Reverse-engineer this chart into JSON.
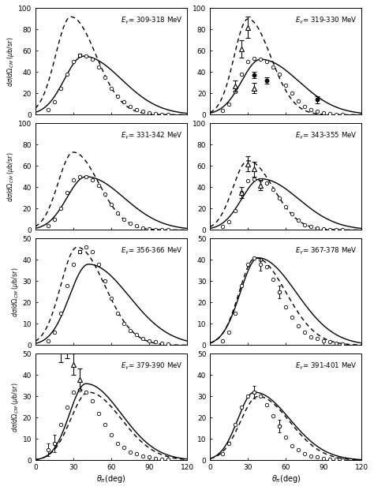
{
  "panels": [
    {
      "label": "309-318 MeV",
      "row": 0,
      "col": 0,
      "ymax": 100,
      "yticks": [
        0,
        20,
        40,
        60,
        80,
        100
      ],
      "solid_params": [
        55,
        38,
        15,
        30
      ],
      "dashed_params": [
        92,
        28,
        12,
        20
      ],
      "open_circles": [
        [
          10,
          5
        ],
        [
          15,
          12
        ],
        [
          20,
          25
        ],
        [
          25,
          38
        ],
        [
          30,
          50
        ],
        [
          35,
          56
        ],
        [
          40,
          55
        ],
        [
          45,
          52
        ],
        [
          50,
          45
        ],
        [
          55,
          35
        ],
        [
          60,
          25
        ],
        [
          65,
          17
        ],
        [
          70,
          12
        ],
        [
          75,
          8
        ],
        [
          80,
          5
        ],
        [
          85,
          3
        ],
        [
          90,
          2
        ],
        [
          95,
          1
        ],
        [
          100,
          0.5
        ],
        [
          105,
          0.3
        ]
      ],
      "open_circles_with_err": [],
      "squares": [
        [
          35,
          56
        ]
      ],
      "open_triangles": [],
      "open_triangle_errors": [],
      "filled_circles": [],
      "filled_circle_errors": []
    },
    {
      "label": "319-330 MeV",
      "row": 0,
      "col": 1,
      "ymax": 100,
      "yticks": [
        0,
        20,
        40,
        60,
        80,
        100
      ],
      "solid_params": [
        52,
        40,
        15,
        30
      ],
      "dashed_params": [
        90,
        30,
        11,
        18
      ],
      "open_circles": [
        [
          10,
          4
        ],
        [
          15,
          10
        ],
        [
          20,
          22
        ],
        [
          25,
          38
        ],
        [
          30,
          50
        ],
        [
          35,
          53
        ],
        [
          40,
          52
        ],
        [
          45,
          50
        ],
        [
          50,
          45
        ],
        [
          55,
          38
        ],
        [
          60,
          28
        ],
        [
          65,
          20
        ],
        [
          70,
          13
        ],
        [
          75,
          8
        ],
        [
          80,
          5
        ],
        [
          85,
          3
        ],
        [
          90,
          2
        ],
        [
          95,
          1
        ],
        [
          100,
          0.5
        ],
        [
          105,
          0.2
        ]
      ],
      "open_circles_with_err": [],
      "squares": [],
      "open_triangles": [
        [
          20,
          27
        ],
        [
          25,
          62
        ],
        [
          30,
          82
        ],
        [
          35,
          25
        ]
      ],
      "open_triangle_errors": [
        5,
        8,
        10,
        5
      ],
      "filled_circles": [
        [
          35,
          37
        ],
        [
          45,
          32
        ],
        [
          85,
          14
        ]
      ],
      "filled_circle_errors": [
        3,
        3,
        3
      ]
    },
    {
      "label": "331-342 MeV",
      "row": 1,
      "col": 0,
      "ymax": 100,
      "yticks": [
        0,
        20,
        40,
        60,
        80,
        100
      ],
      "solid_params": [
        50,
        40,
        15,
        30
      ],
      "dashed_params": [
        73,
        30,
        12,
        20
      ],
      "open_circles": [
        [
          10,
          4
        ],
        [
          15,
          10
        ],
        [
          20,
          20
        ],
        [
          25,
          35
        ],
        [
          30,
          47
        ],
        [
          35,
          50
        ],
        [
          40,
          50
        ],
        [
          45,
          47
        ],
        [
          50,
          42
        ],
        [
          55,
          34
        ],
        [
          60,
          24
        ],
        [
          65,
          16
        ],
        [
          70,
          10
        ],
        [
          75,
          6
        ],
        [
          80,
          4
        ],
        [
          85,
          2
        ],
        [
          90,
          1
        ],
        [
          95,
          0.5
        ],
        [
          100,
          0.3
        ],
        [
          105,
          0.2
        ]
      ],
      "open_circles_with_err": [],
      "squares": [],
      "open_triangles": [],
      "open_triangle_errors": [],
      "filled_circles": [],
      "filled_circle_errors": []
    },
    {
      "label": "343-355 MeV",
      "row": 1,
      "col": 1,
      "ymax": 100,
      "yticks": [
        0,
        20,
        40,
        60,
        80,
        100
      ],
      "solid_params": [
        48,
        40,
        15,
        30
      ],
      "dashed_params": [
        65,
        30,
        12,
        20
      ],
      "open_circles": [
        [
          10,
          3
        ],
        [
          15,
          8
        ],
        [
          20,
          18
        ],
        [
          25,
          35
        ],
        [
          30,
          46
        ],
        [
          35,
          48
        ],
        [
          40,
          47
        ],
        [
          45,
          44
        ],
        [
          50,
          38
        ],
        [
          55,
          30
        ],
        [
          60,
          22
        ],
        [
          65,
          15
        ],
        [
          70,
          9
        ],
        [
          75,
          5
        ],
        [
          80,
          3
        ],
        [
          85,
          2
        ],
        [
          90,
          1
        ],
        [
          95,
          0.5
        ],
        [
          100,
          0.3
        ],
        [
          105,
          0.2
        ]
      ],
      "open_circles_with_err": [],
      "squares": [],
      "open_triangles": [
        [
          25,
          35
        ],
        [
          30,
          62
        ],
        [
          35,
          57
        ],
        [
          40,
          42
        ]
      ],
      "open_triangle_errors": [
        5,
        7,
        7,
        5
      ],
      "filled_circles": [],
      "filled_circle_errors": []
    },
    {
      "label": "356-366 MeV",
      "row": 2,
      "col": 0,
      "ymax": 50,
      "yticks": [
        0,
        10,
        20,
        30,
        40,
        50
      ],
      "solid_params": [
        38,
        42,
        15,
        32
      ],
      "dashed_params": [
        46,
        33,
        13,
        22
      ],
      "open_circles": [
        [
          10,
          2
        ],
        [
          15,
          6
        ],
        [
          20,
          15
        ],
        [
          25,
          28
        ],
        [
          30,
          38
        ],
        [
          35,
          44
        ],
        [
          40,
          46
        ],
        [
          45,
          44
        ],
        [
          50,
          38
        ],
        [
          55,
          30
        ],
        [
          60,
          22
        ],
        [
          65,
          15
        ],
        [
          70,
          10
        ],
        [
          75,
          7
        ],
        [
          80,
          5
        ],
        [
          85,
          3
        ],
        [
          90,
          2
        ],
        [
          95,
          1.5
        ],
        [
          100,
          1
        ],
        [
          105,
          0.5
        ]
      ],
      "open_circles_with_err": [],
      "squares": [
        [
          35,
          44
        ]
      ],
      "open_triangles": [],
      "open_triangle_errors": [],
      "filled_circles": [],
      "filled_circle_errors": []
    },
    {
      "label": "367-378 MeV",
      "row": 2,
      "col": 1,
      "ymax": 50,
      "yticks": [
        0,
        10,
        20,
        30,
        40,
        50
      ],
      "solid_params": [
        41,
        38,
        14,
        30
      ],
      "dashed_params": [
        41,
        36,
        13,
        24
      ],
      "open_circles": [
        [
          10,
          2
        ],
        [
          15,
          6
        ],
        [
          20,
          15
        ],
        [
          25,
          28
        ],
        [
          30,
          38
        ],
        [
          35,
          41
        ],
        [
          40,
          40
        ],
        [
          45,
          37
        ],
        [
          50,
          31
        ],
        [
          55,
          25
        ],
        [
          60,
          18
        ],
        [
          65,
          13
        ],
        [
          70,
          9
        ],
        [
          75,
          6
        ],
        [
          80,
          4
        ],
        [
          85,
          3
        ],
        [
          90,
          2
        ],
        [
          95,
          1.5
        ],
        [
          100,
          1
        ],
        [
          105,
          0.7
        ]
      ],
      "open_circles_with_err": [
        [
          40,
          38,
          3
        ],
        [
          55,
          25,
          3
        ]
      ],
      "squares": [],
      "open_triangles": [],
      "open_triangle_errors": [],
      "filled_circles": [],
      "filled_circle_errors": []
    },
    {
      "label": "379-390 MeV",
      "row": 3,
      "col": 0,
      "ymax": 50,
      "yticks": [
        0,
        10,
        20,
        30,
        40,
        50
      ],
      "solid_params": [
        36,
        40,
        13,
        28
      ],
      "dashed_params": [
        32,
        42,
        14,
        26
      ],
      "open_circles": [
        [
          15,
          8
        ],
        [
          20,
          17
        ],
        [
          25,
          25
        ],
        [
          30,
          32
        ],
        [
          35,
          33
        ],
        [
          40,
          32
        ],
        [
          45,
          28
        ],
        [
          50,
          22
        ],
        [
          55,
          17
        ],
        [
          60,
          12
        ],
        [
          65,
          8
        ],
        [
          70,
          6
        ],
        [
          75,
          4
        ],
        [
          80,
          3
        ],
        [
          85,
          2
        ],
        [
          90,
          1.5
        ],
        [
          95,
          1
        ],
        [
          100,
          0.7
        ],
        [
          105,
          0.5
        ]
      ],
      "open_circles_with_err": [
        [
          10,
          5,
          3
        ],
        [
          15,
          8,
          4
        ]
      ],
      "squares": [],
      "open_triangles": [
        [
          20,
          52
        ],
        [
          25,
          53
        ],
        [
          30,
          45
        ],
        [
          35,
          38
        ]
      ],
      "open_triangle_errors": [
        6,
        5,
        5,
        5
      ],
      "filled_circles": [],
      "filled_circle_errors": []
    },
    {
      "label": "391-401 MeV",
      "row": 3,
      "col": 1,
      "ymax": 50,
      "yticks": [
        0,
        10,
        20,
        30,
        40,
        50
      ],
      "solid_params": [
        32,
        35,
        13,
        28
      ],
      "dashed_params": [
        30,
        38,
        14,
        25
      ],
      "open_circles": [
        [
          10,
          3
        ],
        [
          15,
          8
        ],
        [
          20,
          17
        ],
        [
          25,
          25
        ],
        [
          30,
          30
        ],
        [
          35,
          32
        ],
        [
          40,
          30
        ],
        [
          45,
          26
        ],
        [
          50,
          21
        ],
        [
          55,
          16
        ],
        [
          60,
          11
        ],
        [
          65,
          7
        ],
        [
          70,
          5
        ],
        [
          75,
          3
        ],
        [
          80,
          2
        ],
        [
          85,
          1.5
        ],
        [
          90,
          1
        ],
        [
          95,
          0.7
        ],
        [
          100,
          0.5
        ],
        [
          105,
          0.3
        ]
      ],
      "open_circles_with_err": [
        [
          35,
          32,
          3
        ],
        [
          55,
          16,
          3
        ]
      ],
      "squares": [],
      "open_triangles": [],
      "open_triangle_errors": [],
      "filled_circles": [],
      "filled_circle_errors": []
    }
  ],
  "xmin": 0,
  "xmax": 120,
  "xticks": [
    0,
    30,
    60,
    90,
    120
  ],
  "xtick_labels": [
    "0",
    "30",
    "60",
    "90",
    "120"
  ]
}
